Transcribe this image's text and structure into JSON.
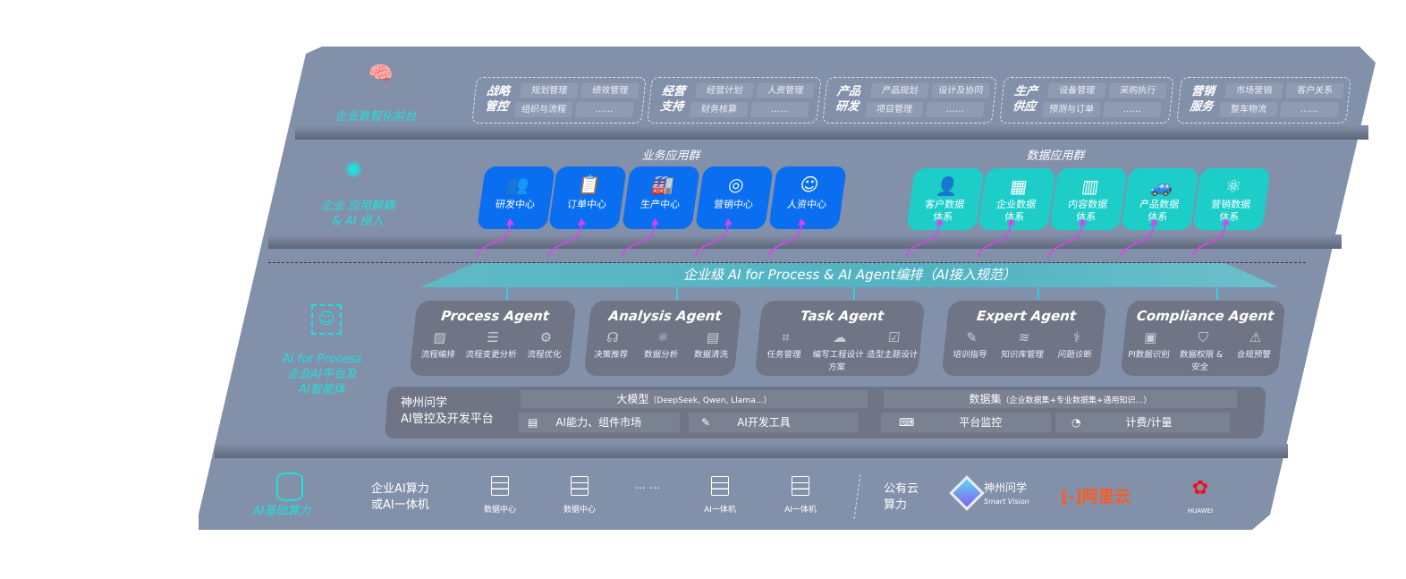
{
  "layers": {
    "frontend": {
      "label": "企业数智化前台",
      "icon": "brain-icon"
    },
    "apps": {
      "label_line1": "企业 应用解耦",
      "label_line2": "& AI 侵入",
      "icon": "molecule-icon"
    },
    "ai": {
      "label_line1": "AI for Process",
      "label_line2": "企业AI平台及",
      "label_line3": "AI智能体",
      "icon": "face-scan-icon"
    },
    "infra": {
      "label": "AI基础算力",
      "icon": "database-icon"
    }
  },
  "groups": [
    {
      "title": "战略管控",
      "items": [
        "规划管理",
        "绩效管理",
        "组织与流程",
        "……"
      ]
    },
    {
      "title": "经营支持",
      "items": [
        "经营计划",
        "人资管理",
        "财务核算",
        "……"
      ]
    },
    {
      "title": "产品研发",
      "items": [
        "产品规划",
        "设计及协同",
        "项目管理",
        "……"
      ]
    },
    {
      "title": "生产供应",
      "items": [
        "设备管理",
        "采购执行",
        "预测与订单",
        "……"
      ]
    },
    {
      "title": "营销服务",
      "items": [
        "市场营销",
        "客户关系",
        "整车物流",
        "……"
      ]
    }
  ],
  "business_apps": {
    "title": "业务应用群",
    "color": "#0a6ef0",
    "items": [
      {
        "label": "研发中心",
        "icon": "users-icon"
      },
      {
        "label": "订单中心",
        "icon": "clipboard-icon"
      },
      {
        "label": "生产中心",
        "icon": "factory-icon"
      },
      {
        "label": "营销中心",
        "icon": "target-icon"
      },
      {
        "label": "人资中心",
        "icon": "person-icon"
      }
    ]
  },
  "data_apps": {
    "title": "数据应用群",
    "color": "#1ccdc8",
    "items": [
      {
        "label": "客户数据体系",
        "icon": "user-icon"
      },
      {
        "label": "企业数据体系",
        "icon": "building-icon"
      },
      {
        "label": "内容数据体系",
        "icon": "books-icon"
      },
      {
        "label": "产品数据体系",
        "icon": "car-icon"
      },
      {
        "label": "营销数据体系",
        "icon": "atom-icon"
      }
    ]
  },
  "orchestration": {
    "label": "企业级 AI for Process & AI Agent编排（AI接入规范）"
  },
  "agents": [
    {
      "name": "Process Agent",
      "caps": [
        {
          "label": "流程编排",
          "icon": "chart-icon"
        },
        {
          "label": "流程变更分析",
          "icon": "list-icon"
        },
        {
          "label": "流程优化",
          "icon": "optimize-icon"
        }
      ]
    },
    {
      "name": "Analysis Agent",
      "caps": [
        {
          "label": "决策推荐",
          "icon": "head-icon"
        },
        {
          "label": "数据分析",
          "icon": "atom-icon"
        },
        {
          "label": "数据清洗",
          "icon": "doc-icon"
        }
      ]
    },
    {
      "name": "Task Agent",
      "caps": [
        {
          "label": "任务管理",
          "icon": "network-icon"
        },
        {
          "label": "编写工程设计方案",
          "icon": "cloud-icon"
        },
        {
          "label": "造型主题设计",
          "icon": "checklist-icon"
        }
      ]
    },
    {
      "name": "Expert Agent",
      "caps": [
        {
          "label": "培训指导",
          "icon": "pen-icon"
        },
        {
          "label": "知识库管理",
          "icon": "layers-icon"
        },
        {
          "label": "问题诊断",
          "icon": "diagnose-icon"
        }
      ]
    },
    {
      "name": "Compliance Agent",
      "caps": [
        {
          "label": "PI数据识别",
          "icon": "id-icon"
        },
        {
          "label": "数据权限 & 安全",
          "icon": "shield-icon"
        },
        {
          "label": "合规预警",
          "icon": "alert-icon"
        }
      ]
    }
  ],
  "platform": {
    "title_line1": "神州问学",
    "title_line2": "AI管控及开发平台",
    "model_label": "大模型",
    "model_note": "（DeepSeek, Qwen, Llama…）",
    "dataset_label": "数据集",
    "dataset_note": "（企业数据集+专业数据集+通用知识…）",
    "tools": [
      "AI能力、组件市场",
      "AI开发工具",
      "平台监控",
      "计费/计量"
    ]
  },
  "infra": {
    "private_label_line1": "企业AI算力",
    "private_label_line2": "或AI一体机",
    "servers": [
      "数据中心",
      "数据中心",
      "AI一体机",
      "AI一体机"
    ],
    "ellipsis": "… …",
    "public_label_line1": "公有云",
    "public_label_line2": "算力",
    "vendors": {
      "shenzhou": "神州问学",
      "shenzhou_sub": "Smart Vision",
      "aliyun": "阿里云",
      "huawei": "HUAWEI"
    }
  }
}
